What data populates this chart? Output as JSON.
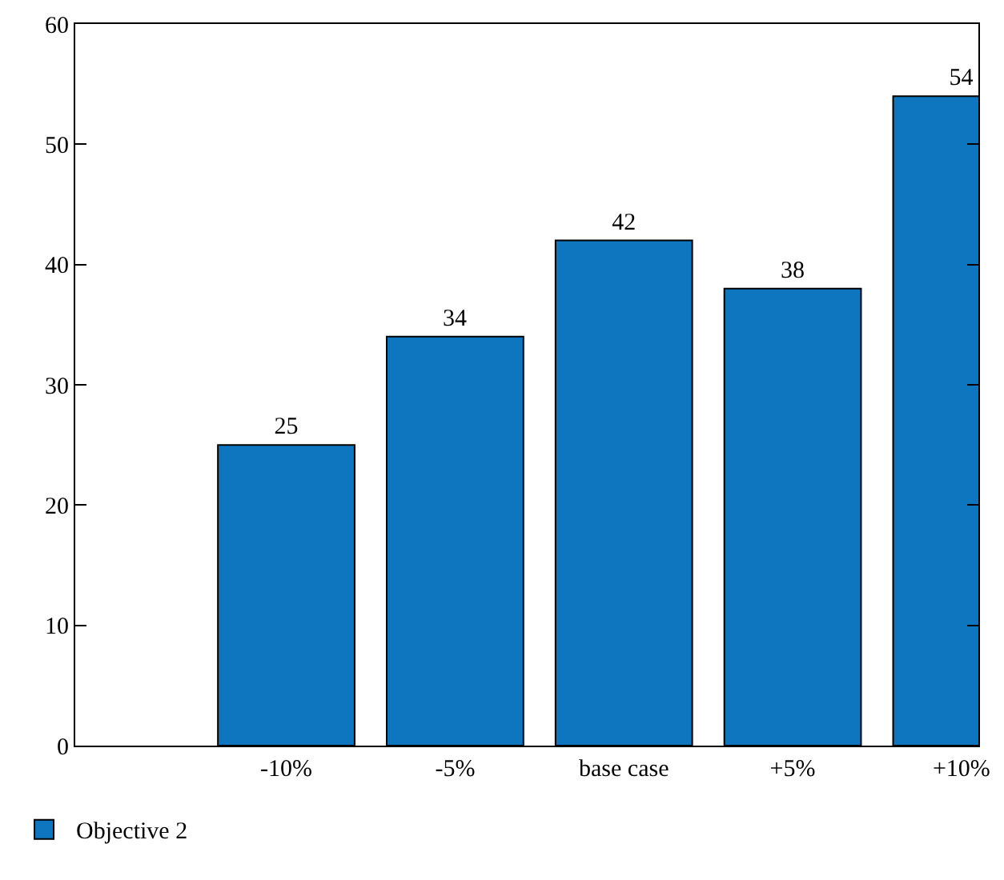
{
  "chart_data": {
    "type": "bar",
    "categories": [
      "-10%",
      "-5%",
      "base case",
      "+5%",
      "+10%"
    ],
    "series": [
      {
        "name": "Objective 2",
        "color": "#0e75bf",
        "values": [
          25,
          34,
          42,
          38,
          54
        ]
      }
    ],
    "ylim": [
      0,
      60
    ],
    "yticks": [
      0,
      10,
      20,
      30,
      40,
      50,
      60
    ],
    "data_labels": true,
    "legend": "bottom left",
    "grid": false
  }
}
